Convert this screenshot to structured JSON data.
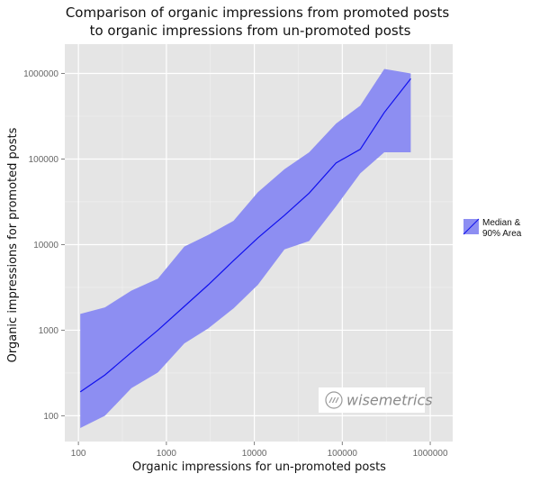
{
  "chart_data": {
    "type": "area",
    "title": [
      "Comparison of organic impressions from promoted posts",
      "to organic impressions from un-promoted posts"
    ],
    "xlabel": "Organic impressions for un-promoted posts",
    "ylabel": "Organic impressions for promoted posts",
    "x_scale": "log10",
    "y_scale": "log10",
    "xlim": [
      70,
      1800000
    ],
    "ylim": [
      50,
      2200000
    ],
    "grid": true,
    "x_ticks": [
      100,
      1000,
      10000,
      100000,
      1000000
    ],
    "x_tick_labels": [
      "100",
      "1000",
      "10000",
      "100000",
      "1000000"
    ],
    "y_ticks": [
      100,
      1000,
      10000,
      100000,
      1000000
    ],
    "y_tick_labels": [
      "100",
      "1000",
      "10000",
      "100000",
      "1000000"
    ],
    "legend": {
      "placement": "right",
      "label": [
        "Median &",
        "90% Area"
      ]
    },
    "series": [
      {
        "kind": "line",
        "x": [
          105,
          200,
          400,
          800,
          1600,
          3000,
          5800,
          11000,
          22000,
          42000,
          85000,
          160000,
          300000,
          600000
        ],
        "values": [
          190,
          300,
          550,
          1000,
          1900,
          3400,
          6500,
          12000,
          22000,
          40000,
          90000,
          130000,
          350000,
          870000
        ]
      },
      {
        "kind": "band",
        "x": [
          105,
          200,
          400,
          800,
          1600,
          3000,
          5800,
          11000,
          22000,
          42000,
          85000,
          160000,
          300000,
          600000
        ],
        "lower": [
          72,
          100,
          210,
          320,
          700,
          1050,
          1800,
          3400,
          8800,
          11000,
          28000,
          68000,
          120000,
          120000
        ],
        "upper": [
          1550,
          1850,
          2900,
          4000,
          9500,
          13000,
          19000,
          41000,
          76000,
          120000,
          260000,
          420000,
          1130000,
          1000000
        ]
      }
    ],
    "colors": {
      "line": "#1010ee",
      "band": "#8d8ef2",
      "panel": "#e5e5e5",
      "grid_major": "#ffffff",
      "grid_minor": "#f2f2f2"
    }
  },
  "watermark": {
    "text": "wisemetrics",
    "icon": "wisemetrics-logo-icon"
  }
}
